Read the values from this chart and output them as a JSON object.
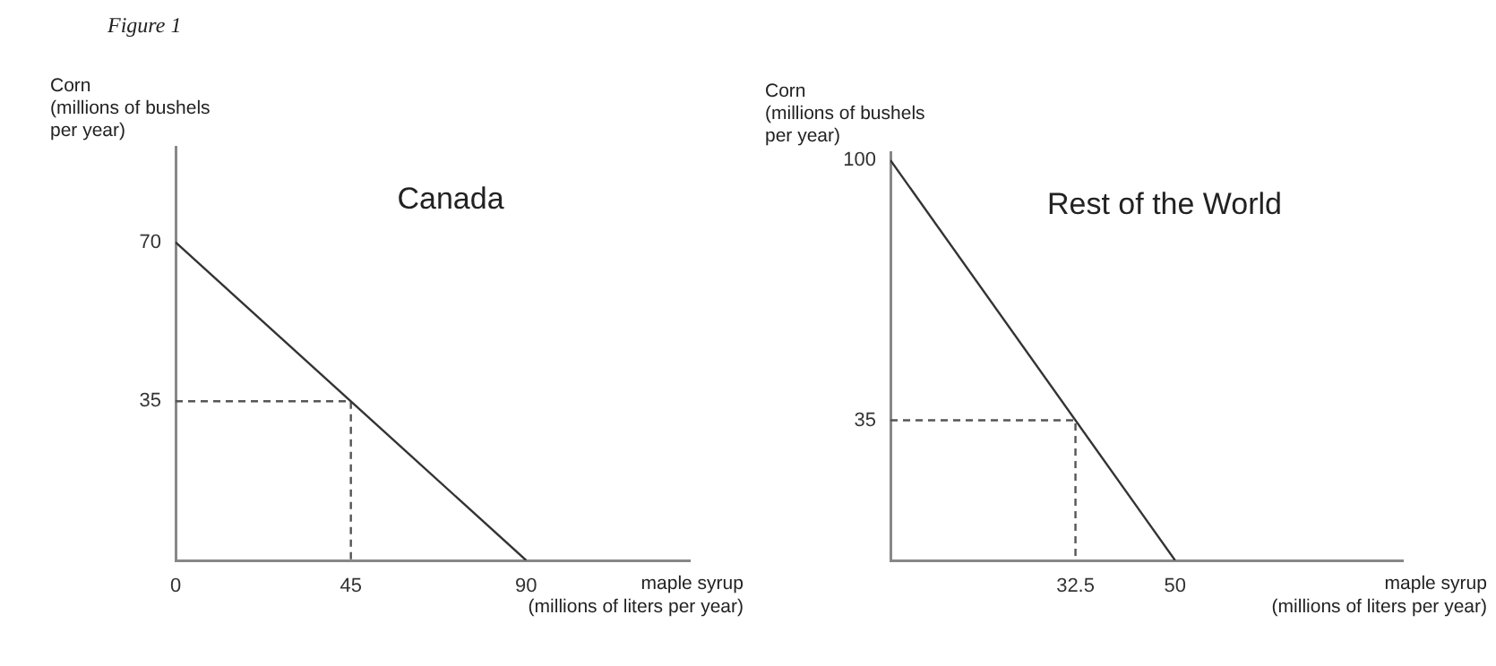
{
  "chart_data": [
    {
      "type": "line",
      "title": "Canada",
      "xlabel": "maple syrup\n(millions of liters per year)",
      "ylabel": "Corn\n(millions of bushels\nper year)",
      "annotations": [
        "Figure 1"
      ],
      "xlim": [
        0,
        132
      ],
      "xticks": [
        0,
        45,
        90
      ],
      "ylim": [
        0,
        91
      ],
      "yticks": [
        35,
        70
      ],
      "grid": false,
      "legend": false,
      "marker": "none",
      "series": [
        {
          "x": [
            0,
            90
          ],
          "values": [
            70,
            0
          ],
          "color": "#333333",
          "line_style": "solid"
        },
        {
          "x": [
            0,
            45,
            45
          ],
          "values": [
            35,
            35,
            0
          ],
          "color": "#555555",
          "line_style": "dashed"
        }
      ]
    },
    {
      "type": "line",
      "title": "Rest of the World",
      "xlabel": "maple syrup\n(millions of liters per year)",
      "ylabel": "Corn\n(millions of bushels\nper year)",
      "xlim": [
        0,
        90
      ],
      "xticks": [
        32.5,
        50
      ],
      "ylim": [
        0,
        102
      ],
      "yticks": [
        35,
        100
      ],
      "grid": false,
      "legend": false,
      "marker": "none",
      "series": [
        {
          "x": [
            0,
            50
          ],
          "values": [
            100,
            0
          ],
          "color": "#333333",
          "line_style": "solid"
        },
        {
          "x": [
            0,
            32.5,
            32.5
          ],
          "values": [
            35,
            35,
            0
          ],
          "color": "#555555",
          "line_style": "dashed"
        }
      ]
    }
  ]
}
